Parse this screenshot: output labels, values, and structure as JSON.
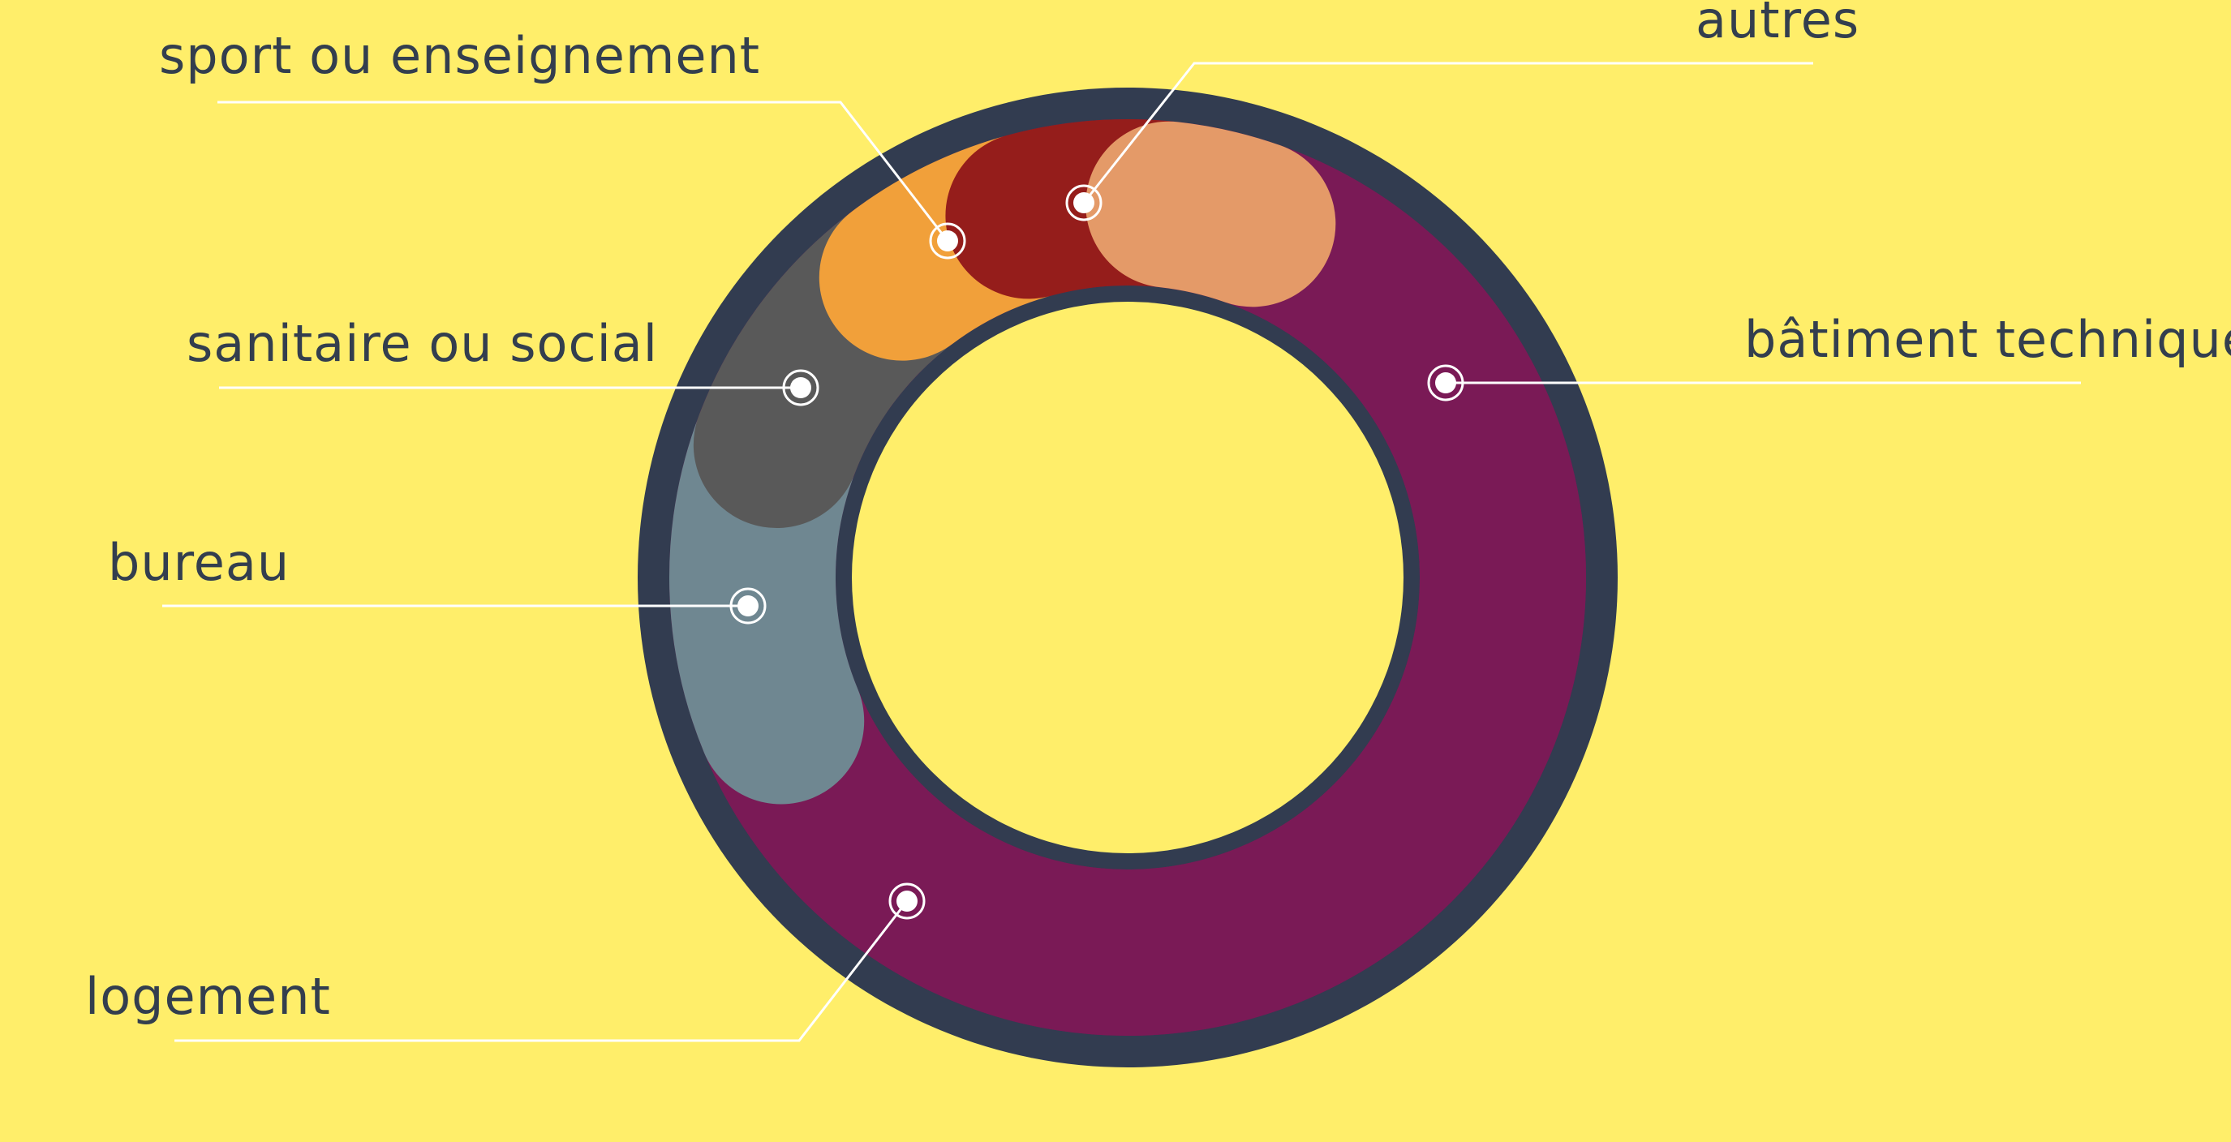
{
  "chart_data": {
    "type": "pie",
    "variant": "donut",
    "legend": "none",
    "grid": false,
    "categories": [
      "bâtiment technique",
      "logement",
      "bureau",
      "sanitaire ou social",
      "sport ou enseignement",
      "autres"
    ],
    "values": [
      63,
      12,
      9,
      6,
      6,
      4
    ],
    "unit": "%",
    "slices": [
      {
        "label": "bâtiment technique",
        "value": 63,
        "color": "#7A1A56"
      },
      {
        "label": "logement",
        "value": 12,
        "color": "#6F8791"
      },
      {
        "label": "bureau",
        "value": 9,
        "color": "#595959"
      },
      {
        "label": "sanitaire ou social",
        "value": 6,
        "color": "#F1A03A"
      },
      {
        "label": "sport ou enseignement",
        "value": 6,
        "color": "#951D1B"
      },
      {
        "label": "autres",
        "value": 4,
        "color": "#E49A68"
      }
    ]
  },
  "colors": {
    "background": "#FFEE6A",
    "ring": "#323C50",
    "leader_line": "#FFFFFF",
    "label_text": "#333E4E"
  }
}
